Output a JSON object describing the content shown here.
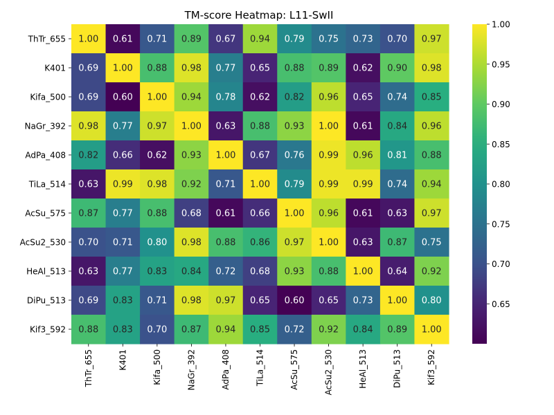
{
  "chart_data": {
    "type": "heatmap",
    "title": "TM-score Heatmap: L11-SwII",
    "xlabel": "",
    "ylabel": "",
    "labels": [
      "ThTr_655",
      "K401",
      "Kifa_500",
      "NaGr_392",
      "AdPa_408",
      "TiLa_514",
      "AcSu_575",
      "AcSu2_530",
      "HeAl_513",
      "DiPu_513",
      "Kif3_592"
    ],
    "values": [
      [
        1.0,
        0.61,
        0.71,
        0.89,
        0.67,
        0.94,
        0.79,
        0.75,
        0.73,
        0.7,
        0.97
      ],
      [
        0.69,
        1.0,
        0.88,
        0.98,
        0.77,
        0.65,
        0.88,
        0.89,
        0.62,
        0.9,
        0.98
      ],
      [
        0.69,
        0.6,
        1.0,
        0.94,
        0.78,
        0.62,
        0.82,
        0.96,
        0.65,
        0.74,
        0.85
      ],
      [
        0.98,
        0.77,
        0.97,
        1.0,
        0.63,
        0.88,
        0.93,
        1.0,
        0.61,
        0.84,
        0.96
      ],
      [
        0.82,
        0.66,
        0.62,
        0.93,
        1.0,
        0.67,
        0.76,
        0.99,
        0.96,
        0.81,
        0.88
      ],
      [
        0.63,
        0.99,
        0.98,
        0.92,
        0.71,
        1.0,
        0.79,
        0.99,
        0.99,
        0.74,
        0.94
      ],
      [
        0.87,
        0.77,
        0.88,
        0.68,
        0.61,
        0.66,
        1.0,
        0.96,
        0.61,
        0.63,
        0.97
      ],
      [
        0.7,
        0.71,
        0.8,
        0.98,
        0.88,
        0.86,
        0.97,
        1.0,
        0.63,
        0.87,
        0.75
      ],
      [
        0.63,
        0.77,
        0.83,
        0.84,
        0.72,
        0.68,
        0.93,
        0.88,
        1.0,
        0.64,
        0.92
      ],
      [
        0.69,
        0.83,
        0.71,
        0.98,
        0.97,
        0.65,
        0.6,
        0.65,
        0.73,
        1.0,
        0.8
      ],
      [
        0.88,
        0.83,
        0.7,
        0.87,
        0.94,
        0.85,
        0.72,
        0.92,
        0.84,
        0.89,
        1.0
      ]
    ],
    "colormap": "viridis",
    "vmin": 0.6,
    "vmax": 1.0,
    "colorbar_ticks": [
      "0.65",
      "0.70",
      "0.75",
      "0.80",
      "0.85",
      "0.90",
      "0.95",
      "1.00"
    ],
    "cell_format": "2 decimals",
    "grid": false
  }
}
